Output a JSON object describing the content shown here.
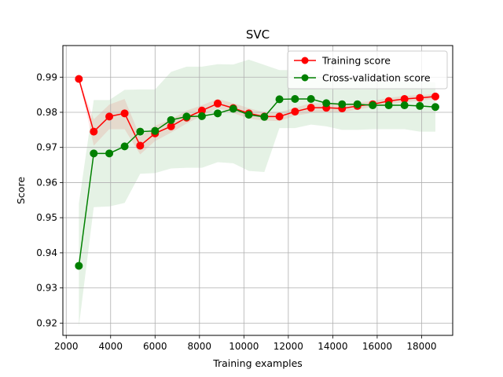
{
  "chart_data": {
    "type": "line",
    "title": "SVC",
    "xlabel": "Training examples",
    "ylabel": "Score",
    "xlim": [
      1850,
      19400
    ],
    "ylim": [
      0.9165,
      0.999
    ],
    "xticks": [
      2000,
      4000,
      6000,
      8000,
      10000,
      12000,
      14000,
      16000,
      18000
    ],
    "xtick_labels": [
      "2000",
      "4000",
      "6000",
      "8000",
      "10000",
      "12000",
      "14000",
      "16000",
      "18000"
    ],
    "yticks": [
      0.92,
      0.93,
      0.94,
      0.95,
      0.96,
      0.97,
      0.98,
      0.99
    ],
    "ytick_labels": [
      "0.92",
      "0.93",
      "0.94",
      "0.95",
      "0.96",
      "0.97",
      "0.98",
      "0.99"
    ],
    "grid": true,
    "legend_position": "top-right",
    "x": [
      2570,
      3240,
      3940,
      4630,
      5330,
      6000,
      6720,
      7420,
      8110,
      8820,
      9520,
      10220,
      10920,
      11600,
      12300,
      13020,
      13710,
      14420,
      15110,
      15800,
      16520,
      17230,
      17920,
      18620
    ],
    "series": [
      {
        "name": "Training score",
        "color": "#ff0000",
        "marker": "circle",
        "values": [
          0.9895,
          0.9745,
          0.9788,
          0.9797,
          0.9705,
          0.974,
          0.976,
          0.9785,
          0.9805,
          0.9825,
          0.9812,
          0.9797,
          0.9788,
          0.9788,
          0.9802,
          0.9813,
          0.9813,
          0.9811,
          0.9818,
          0.9823,
          0.9832,
          0.9838,
          0.9841,
          0.9845
        ],
        "band_lower": [
          0.9895,
          0.9705,
          0.9752,
          0.9752,
          0.968,
          0.9718,
          0.9742,
          0.9768,
          0.979,
          0.9812,
          0.9798,
          0.9782,
          0.9776,
          0.9775,
          0.979,
          0.9798,
          0.98,
          0.98,
          0.9808,
          0.9815,
          0.9823,
          0.9828,
          0.9833,
          0.9838
        ],
        "band_upper": [
          0.9895,
          0.978,
          0.9822,
          0.9838,
          0.973,
          0.9762,
          0.978,
          0.9805,
          0.982,
          0.9838,
          0.9826,
          0.9812,
          0.98,
          0.98,
          0.9813,
          0.9826,
          0.9826,
          0.9822,
          0.9828,
          0.9832,
          0.9841,
          0.9847,
          0.9849,
          0.9852
        ]
      },
      {
        "name": "Cross-validation score",
        "color": "#008000",
        "marker": "circle",
        "values": [
          0.9363,
          0.9683,
          0.9683,
          0.9703,
          0.9745,
          0.9747,
          0.9778,
          0.9788,
          0.9789,
          0.9797,
          0.981,
          0.9793,
          0.9787,
          0.9837,
          0.9838,
          0.9838,
          0.9826,
          0.9823,
          0.9823,
          0.982,
          0.982,
          0.982,
          0.9818,
          0.9815
        ],
        "band_lower": [
          0.919,
          0.953,
          0.9532,
          0.9542,
          0.9625,
          0.9627,
          0.964,
          0.9642,
          0.9642,
          0.9658,
          0.9655,
          0.9633,
          0.963,
          0.9755,
          0.9755,
          0.9765,
          0.976,
          0.975,
          0.975,
          0.9752,
          0.9752,
          0.9752,
          0.9745,
          0.9745
        ],
        "band_upper": [
          0.954,
          0.9835,
          0.9835,
          0.9864,
          0.9865,
          0.9865,
          0.9915,
          0.993,
          0.993,
          0.9937,
          0.9936,
          0.995,
          0.9935,
          0.992,
          0.992,
          0.991,
          0.989,
          0.9897,
          0.9897,
          0.9887,
          0.9887,
          0.9887,
          0.9888,
          0.9885
        ]
      }
    ]
  }
}
